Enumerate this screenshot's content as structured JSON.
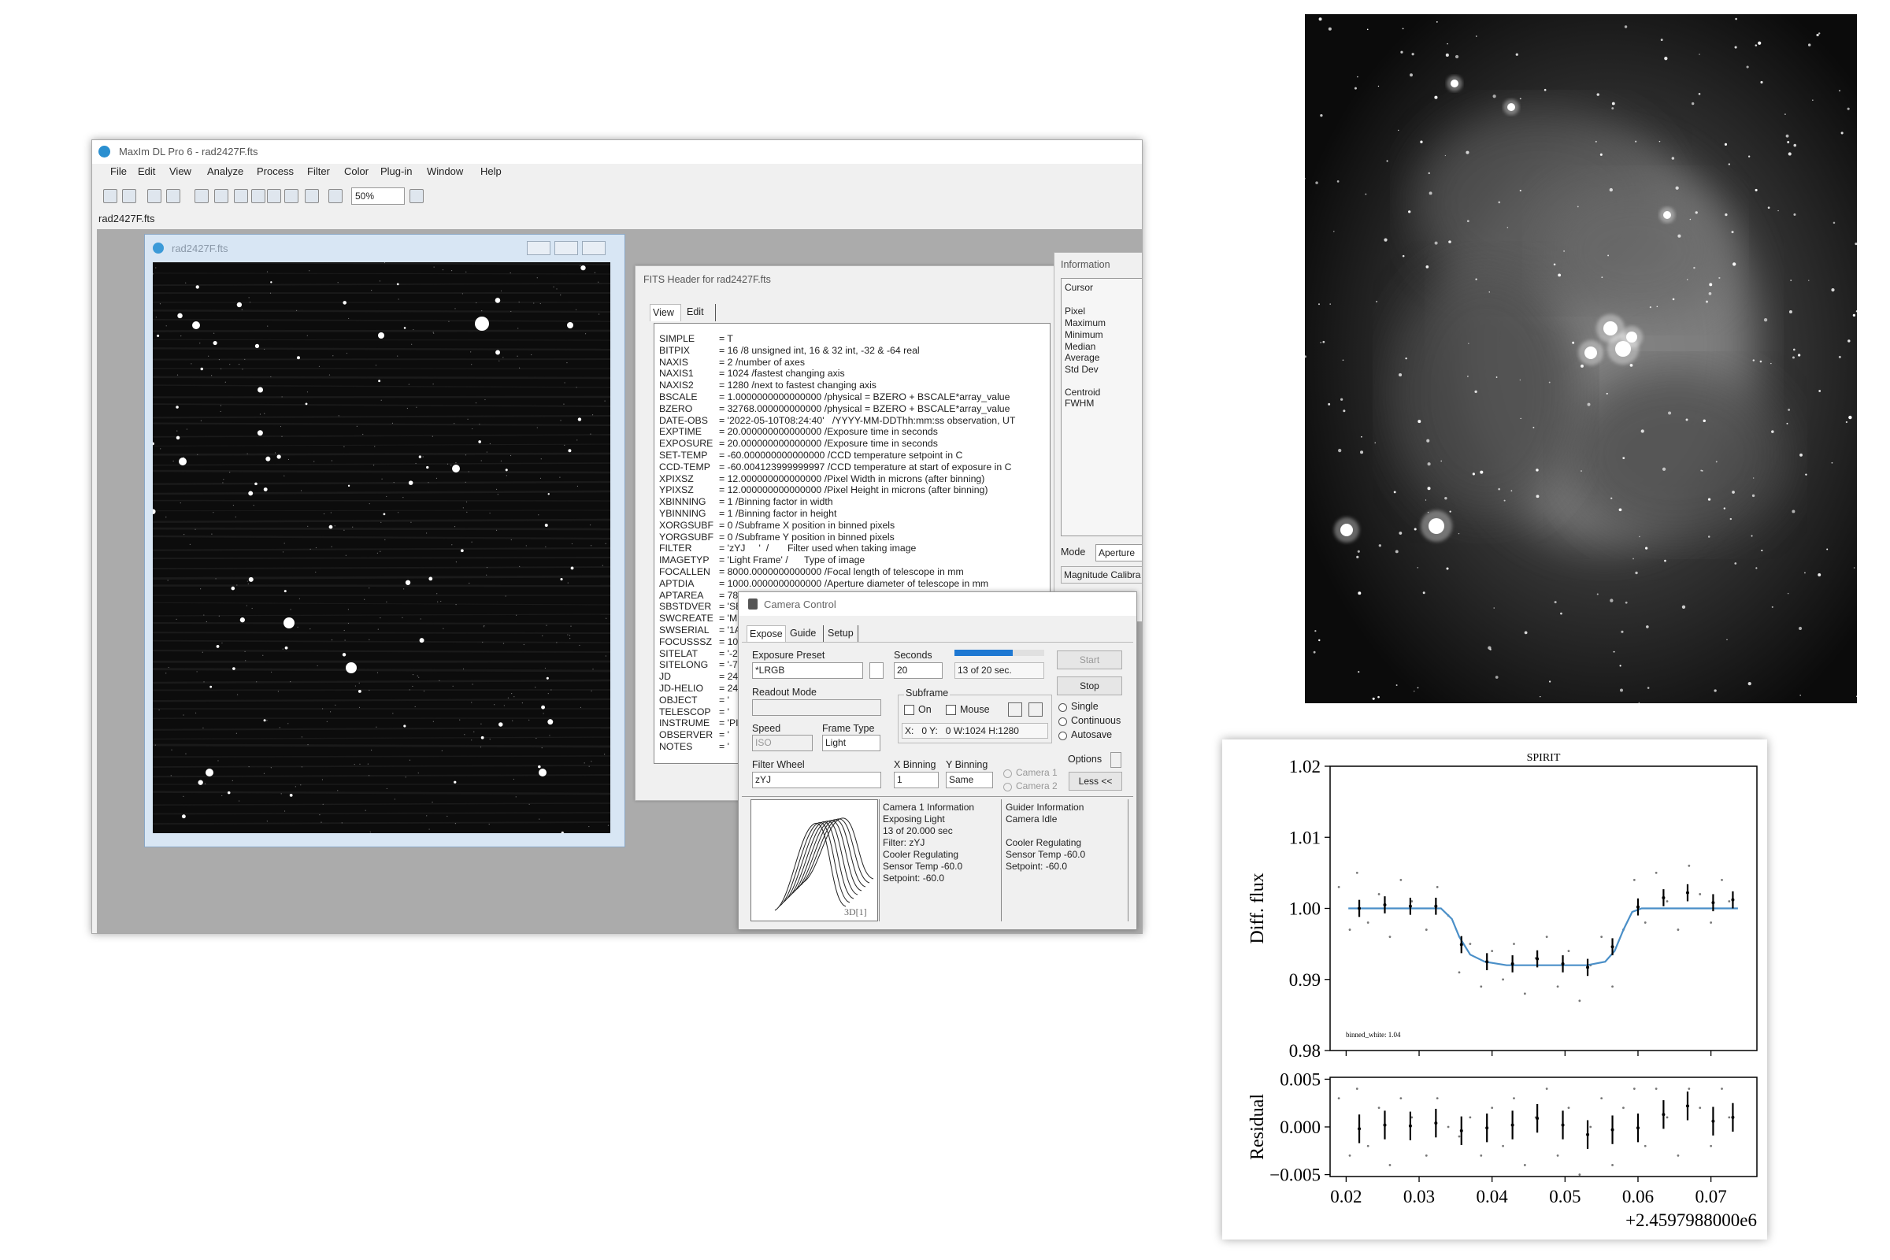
{
  "app": {
    "title": "MaxIm DL Pro 6 - rad2427F.fts",
    "menu": [
      "File",
      "Edit",
      "View",
      "Analyze",
      "Process",
      "Filter",
      "Color",
      "Plug-in",
      "Window",
      "Help"
    ],
    "zoom": "50%",
    "tab": "rad2427F.fts"
  },
  "image_window": {
    "title": "rad2427F.fts"
  },
  "fits_header": {
    "title": "FITS Header for rad2427F.fts",
    "tabs": [
      "View",
      "Edit"
    ],
    "lines": [
      [
        "SIMPLE",
        "= T"
      ],
      [
        "BITPIX",
        "= 16 /8 unsigned int, 16 & 32 int, -32 & -64 real"
      ],
      [
        "NAXIS",
        "= 2 /number of axes"
      ],
      [
        "NAXIS1",
        "= 1024 /fastest changing axis"
      ],
      [
        "NAXIS2",
        "= 1280 /next to fastest changing axis"
      ],
      [
        "BSCALE",
        "= 1.0000000000000000 /physical = BZERO + BSCALE*array_value"
      ],
      [
        "BZERO",
        "= 32768.000000000000 /physical = BZERO + BSCALE*array_value"
      ],
      [
        "DATE-OBS",
        "= '2022-05-10T08:24:40'   /YYYY-MM-DDThh:mm:ss observation, UT"
      ],
      [
        "EXPTIME",
        "= 20.000000000000000 /Exposure time in seconds"
      ],
      [
        "EXPOSURE",
        "= 20.000000000000000 /Exposure time in seconds"
      ],
      [
        "SET-TEMP",
        "= -60.000000000000000 /CCD temperature setpoint in C"
      ],
      [
        "CCD-TEMP",
        "= -60.004123999999997 /CCD temperature at start of exposure in C"
      ],
      [
        "XPIXSZ",
        "= 12.000000000000000 /Pixel Width in microns (after binning)"
      ],
      [
        "YPIXSZ",
        "= 12.000000000000000 /Pixel Height in microns (after binning)"
      ],
      [
        "XBINNING",
        "= 1 /Binning factor in width"
      ],
      [
        "YBINNING",
        "= 1 /Binning factor in height"
      ],
      [
        "XORGSUBF",
        "= 0 /Subframe X position in binned pixels"
      ],
      [
        "YORGSUBF",
        "= 0 /Subframe Y position in binned pixels"
      ],
      [
        "FILTER",
        "= 'zYJ     '  /       Filter used when taking image"
      ],
      [
        "IMAGETYP",
        "= 'Light Frame' /      Type of image"
      ],
      [
        "FOCALLEN",
        "= 8000.0000000000000 /Focal length of telescope in mm"
      ],
      [
        "APTDIA",
        "= 1000.0000000000000 /Aperture diameter of telescope in mm"
      ],
      [
        "APTAREA",
        "= 78"
      ],
      [
        "SBSTDVER",
        "= 'SE"
      ],
      [
        "SWCREATE",
        "= 'M"
      ],
      [
        "SWSERIAL",
        "= '1A"
      ],
      [
        "FOCUSSSZ",
        "= 10"
      ],
      [
        "SITELAT",
        "= '-2"
      ],
      [
        "SITELONG",
        "= '-7"
      ],
      [
        "JD",
        "= 24"
      ],
      [
        "JD-HELIO",
        "= 24"
      ],
      [
        "OBJECT",
        "= '"
      ],
      [
        "TELESCOP",
        "= '"
      ],
      [
        "INSTRUME",
        "= 'PI"
      ],
      [
        "OBSERVER",
        "= '"
      ],
      [
        "NOTES",
        "= '"
      ]
    ]
  },
  "information": {
    "title": "Information",
    "fields": [
      "Cursor",
      "Pixel",
      "Maximum",
      "Minimum",
      "Median",
      "Average",
      "Std Dev",
      "Centroid",
      "FWHM"
    ],
    "mode_label": "Mode",
    "mode": "Aperture",
    "magnitude": "Magnitude Calibra"
  },
  "camera_control": {
    "title": "Camera Control",
    "tabs": [
      "Expose",
      "Guide",
      "Setup"
    ],
    "exposure_preset_label": "Exposure Preset",
    "exposure_preset": "*LRGB",
    "seconds_label": "Seconds",
    "seconds": "20",
    "progress_text": "13 of 20 sec.",
    "readout_mode_label": "Readout Mode",
    "subframe_label": "Subframe",
    "on": "On",
    "mouse": "Mouse",
    "subframe_coords": "X:   0 Y:   0 W:1024 H:1280",
    "speed_label": "Speed",
    "speed": "ISO",
    "frame_type_label": "Frame Type",
    "frame_type": "Light",
    "filter_wheel_label": "Filter Wheel",
    "filter": "zYJ",
    "x_binning_label": "X Binning",
    "x_binning": "1",
    "y_binning_label": "Y Binning",
    "y_binning": "Same",
    "camera1": "Camera 1",
    "camera2": "Camera 2",
    "start": "Start",
    "stop": "Stop",
    "options": "Options",
    "less": "Less <<",
    "modes": [
      "Single",
      "Continuous",
      "Autosave"
    ],
    "camera_info": [
      "Camera 1 Information",
      "Exposing Light",
      "13 of 20.000 sec",
      "Filter: zYJ",
      "Cooler Regulating",
      "Sensor Temp -60.0",
      "Setpoint: -60.0"
    ],
    "guider_info": [
      "Guider Information",
      "Camera Idle",
      "Cooler Regulating",
      "Sensor Temp -60.0",
      "Setpoint: -60.0"
    ],
    "graph_label": "3D[1]"
  },
  "chart_data": {
    "type": "lightcurve",
    "title": "SPIRIT",
    "ylabel": "Diff. flux",
    "residual_ylabel": "Residual",
    "offset_text": "+2.4597988000e6",
    "annotation": "binned_white: 1.04",
    "xlim": [
      0.0178,
      0.0763
    ],
    "xticks": [
      0.02,
      0.03,
      0.04,
      0.05,
      0.06,
      0.07
    ],
    "ylim": [
      0.98,
      1.02
    ],
    "yticks": [
      0.98,
      0.99,
      {
        "value": 1,
        "label": "1.00"
      },
      1.01,
      1.02
    ],
    "residual_ylim": [
      -0.0052,
      0.0052
    ],
    "residual_yticks": [
      {
        "value": -0.005,
        "label": "−0.005"
      },
      {
        "value": 0,
        "label": "0.000"
      },
      0.005
    ],
    "x": [
      0.0218,
      0.0253,
      0.0288,
      0.0323,
      0.0358,
      0.0393,
      0.0428,
      0.0462,
      0.0497,
      0.0531,
      0.0565,
      0.06,
      0.0635,
      0.0668,
      0.0703,
      0.073
    ],
    "values": [
      1.0,
      1.0005,
      1.0003,
      1.0003,
      0.9949,
      0.9925,
      0.9922,
      0.9929,
      0.9922,
      0.9917,
      0.9946,
      1.0002,
      1.0015,
      1.0022,
      1.0008,
      1.0012
    ],
    "errors": [
      0.0012,
      0.0012,
      0.0012,
      0.0012,
      0.0012,
      0.0012,
      0.0012,
      0.0012,
      0.0012,
      0.0012,
      0.0012,
      0.0012,
      0.0012,
      0.0012,
      0.0012,
      0.0012
    ],
    "residuals": [
      -0.0002,
      0.0002,
      0.0001,
      0.0004,
      -0.0004,
      -0.0001,
      0.0002,
      0.0009,
      0.0002,
      -0.0008,
      -0.0003,
      -0.0001,
      0.0013,
      0.0022,
      0.0006,
      0.001
    ],
    "residual_errors": [
      0.0015,
      0.0015,
      0.0015,
      0.0015,
      0.0015,
      0.0015,
      0.0015,
      0.0015,
      0.0015,
      0.0015,
      0.0015,
      0.0015,
      0.0015,
      0.0015,
      0.0015,
      0.0015
    ],
    "model_x": [
      0.0203,
      0.033,
      0.0345,
      0.0355,
      0.037,
      0.039,
      0.042,
      0.053,
      0.0555,
      0.0568,
      0.058,
      0.0592,
      0.0605,
      0.0737
    ],
    "model_y": [
      1.0,
      1.0,
      0.9985,
      0.996,
      0.9935,
      0.9925,
      0.992,
      0.992,
      0.9925,
      0.994,
      0.997,
      0.9995,
      1.0,
      1.0
    ],
    "model_color": "#4a8fc8",
    "raw_x": [
      0.019,
      0.0205,
      0.0215,
      0.023,
      0.0245,
      0.026,
      0.0275,
      0.029,
      0.031,
      0.0325,
      0.034,
      0.0355,
      0.037,
      0.0385,
      0.04,
      0.0415,
      0.043,
      0.0445,
      0.046,
      0.0475,
      0.049,
      0.0505,
      0.052,
      0.0535,
      0.055,
      0.0565,
      0.058,
      0.0595,
      0.061,
      0.0625,
      0.064,
      0.0655,
      0.067,
      0.0685,
      0.07,
      0.0715,
      0.0725
    ],
    "raw_y": [
      1.003,
      0.997,
      1.005,
      0.998,
      1.002,
      0.996,
      1.004,
      1.001,
      0.997,
      1.003,
      0.999,
      0.991,
      0.995,
      0.989,
      0.994,
      0.99,
      0.995,
      0.988,
      0.993,
      0.996,
      0.989,
      0.994,
      0.987,
      0.992,
      0.996,
      0.989,
      0.997,
      1.004,
      0.998,
      1.005,
      1.001,
      0.997,
      1.006,
      1.002,
      0.998,
      1.004,
      1.001
    ],
    "raw_residuals": [
      0.003,
      -0.003,
      0.004,
      -0.002,
      0.002,
      -0.004,
      0.003,
      0.001,
      -0.003,
      0.003,
      0.0,
      -0.001,
      0.001,
      -0.003,
      0.002,
      -0.002,
      0.003,
      -0.004,
      0.001,
      0.004,
      -0.003,
      0.002,
      -0.005,
      0.0,
      0.003,
      -0.004,
      0.002,
      0.004,
      -0.002,
      0.004,
      0.001,
      -0.003,
      0.004,
      0.002,
      -0.002,
      0.004,
      0.001
    ]
  }
}
